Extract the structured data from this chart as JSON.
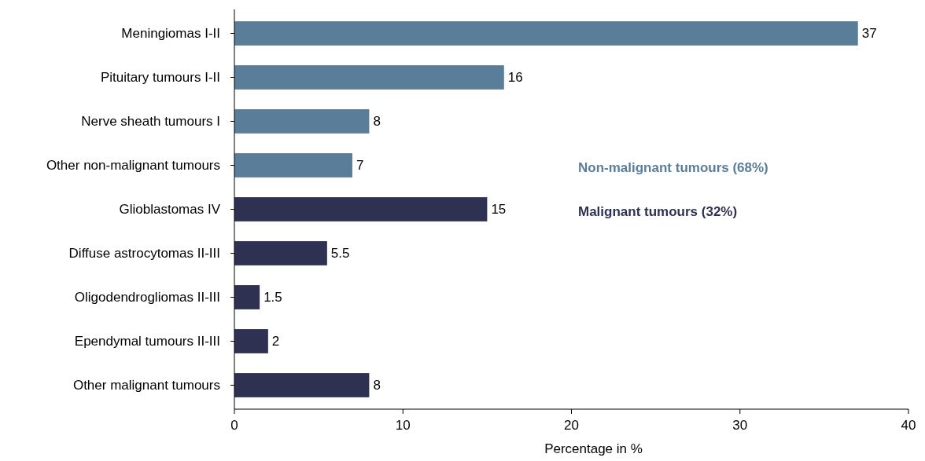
{
  "chart_data": {
    "type": "bar",
    "orientation": "horizontal",
    "categories": [
      "Meningiomas I-II",
      "Pituitary tumours I-II",
      "Nerve sheath tumours I",
      "Other non-malignant tumours",
      "Glioblastomas IV",
      "Diffuse astrocytomas II-III",
      "Oligodendrogliomas II-III",
      "Ependymal tumours II-III",
      "Other malignant tumours"
    ],
    "series": [
      {
        "name": "Non-malignant tumours (68%)",
        "color": "#5a7d9a",
        "values": [
          37,
          16,
          8,
          7,
          null,
          null,
          null,
          null,
          null
        ]
      },
      {
        "name": "Malignant tumours (32%)",
        "color": "#2e3152",
        "values": [
          null,
          null,
          null,
          null,
          15,
          5.5,
          1.5,
          2,
          8
        ]
      }
    ],
    "xlim": [
      0,
      40
    ],
    "xticks": [
      0,
      10,
      20,
      30,
      40
    ],
    "xlabel": "Percentage in %",
    "data_labels": true,
    "legend": "right",
    "grid": false
  }
}
